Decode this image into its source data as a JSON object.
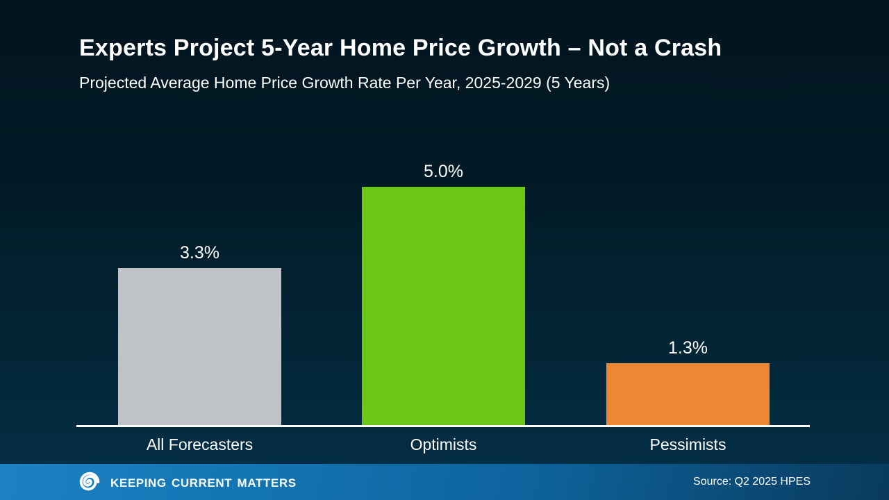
{
  "header": {
    "title": "Experts Project 5-Year Home Price Growth – Not a Crash",
    "subtitle": "Projected Average Home Price Growth Rate Per Year, 2025-2029 (5 Years)"
  },
  "chart_data": {
    "type": "bar",
    "categories": [
      "All Forecasters",
      "Optimists",
      "Pessimists"
    ],
    "values": [
      3.3,
      5.0,
      1.3
    ],
    "value_labels": [
      "3.3%",
      "5.0%",
      "1.3%"
    ],
    "bar_colors": [
      "#bfc3c7",
      "#6cc715",
      "#ec8733"
    ],
    "title": "Projected Average Home Price Growth Rate Per Year, 2025-2029 (5 Years)",
    "xlabel": "",
    "ylabel": "",
    "ylim": [
      0,
      5.0
    ],
    "grid": false,
    "legend": null,
    "axis_line_color": "#ffffff",
    "label_color": "#ffffff"
  },
  "footer": {
    "brand": "Keeping Current Matters",
    "source": "Source: Q2 2025 HPES",
    "bar_gradient_left": "#1c81c3",
    "bar_gradient_right": "#093a5c"
  },
  "background": {
    "top_color": "#021520",
    "bottom_color": "#04304a"
  }
}
